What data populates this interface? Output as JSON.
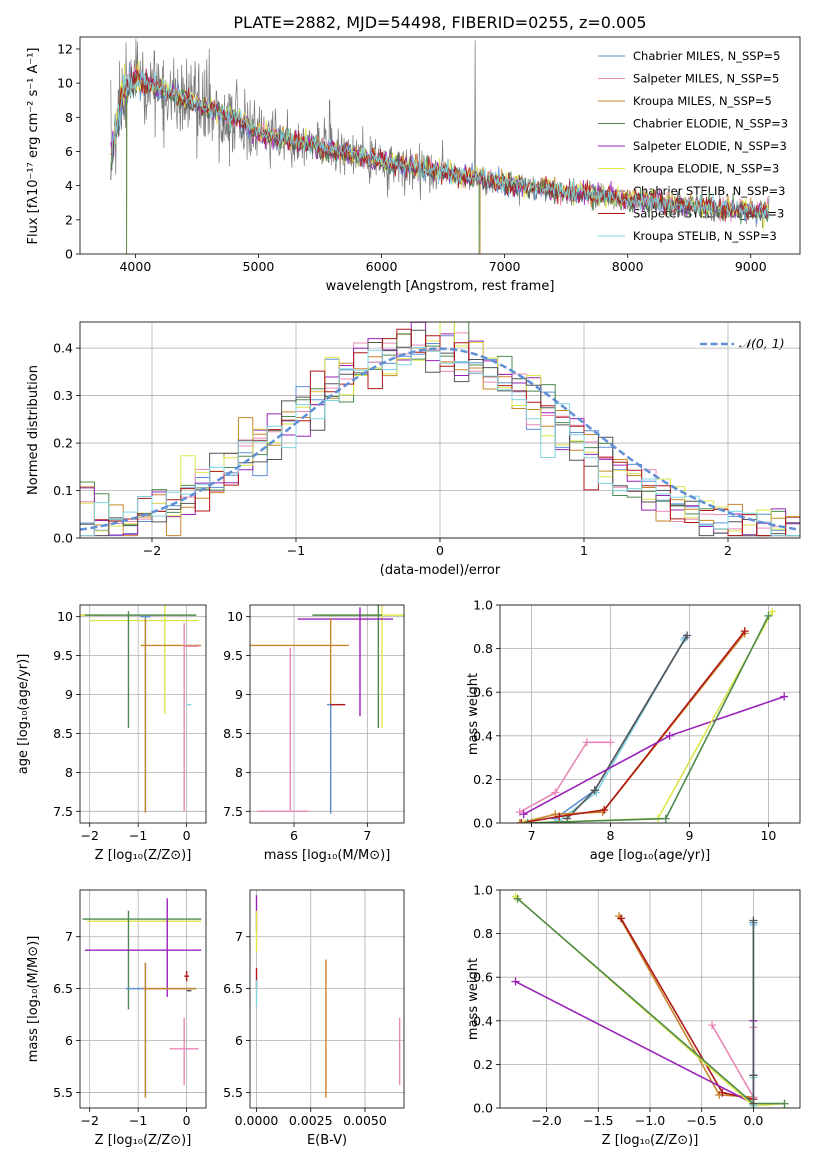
{
  "colors": [
    "#5f8fd6",
    "#e88ab8",
    "#c8862a",
    "#4e8a4e",
    "#9b22b8",
    "#dde64a",
    "#555555",
    "#b01818",
    "#7fd4e0"
  ],
  "chart_data": [
    {
      "type": "line",
      "title": "PLATE=2882, MJD=54498, FIBERID=0255, z=0.005",
      "xlabel": "wavelength [Angstrom, rest frame]",
      "ylabel": "Flux [fλ10⁻¹⁷ erg cm⁻² s⁻¹ A⁻¹]",
      "xlim": [
        3550,
        9400
      ],
      "ylim": [
        0,
        12.7
      ],
      "xticks": [
        4000,
        5000,
        6000,
        7000,
        8000,
        9000
      ],
      "yticks": [
        0,
        2,
        4,
        6,
        8,
        10,
        12
      ],
      "grid": false,
      "legend_position": "top-right",
      "series": [
        {
          "name": "Chabrier MILES, N_SSP=5"
        },
        {
          "name": "Salpeter MILES, N_SSP=5"
        },
        {
          "name": "Kroupa MILES, N_SSP=5"
        },
        {
          "name": "Chabrier ELODIE, N_SSP=3"
        },
        {
          "name": "Salpeter ELODIE, N_SSP=3"
        },
        {
          "name": "Kroupa ELODIE, N_SSP=3"
        },
        {
          "name": "Chabrier STELIB, N_SSP=3"
        },
        {
          "name": "Salpeter STELIB, N_SSP=3"
        },
        {
          "name": "Kroupa STELIB, N_SSP=3"
        }
      ],
      "model_trend": {
        "x": [
          3800,
          3900,
          4000,
          4200,
          4500,
          4800,
          5000,
          5500,
          6000,
          6500,
          7000,
          7500,
          8000,
          8500,
          9000,
          9100
        ],
        "y": [
          5.5,
          9.5,
          10.2,
          9.6,
          8.7,
          7.9,
          7.0,
          6.2,
          5.4,
          4.7,
          4.1,
          3.6,
          3.15,
          2.8,
          2.5,
          2.4
        ]
      }
    },
    {
      "type": "histogram",
      "xlabel": "(data-model)/error",
      "ylabel": "Normed distribution",
      "xlim": [
        -2.5,
        2.5
      ],
      "ylim": [
        0,
        0.455
      ],
      "xticks": [
        -2,
        -1,
        0,
        1,
        2
      ],
      "yticks": [
        0.0,
        0.1,
        0.2,
        0.3,
        0.4
      ],
      "grid": true,
      "legend_position": "top-right",
      "reference": {
        "name": "𝒩(0, 1)",
        "mean": 0,
        "sigma": 1,
        "color": "#5f8fd6"
      },
      "bin_width": 0.1,
      "bin_range": [
        -2.5,
        2.5
      ]
    },
    {
      "type": "scatter",
      "xlabel": "Z [log₁₀(Z/Z⊙)]",
      "ylabel": "age  [log₁₀(age/yr)]",
      "xlim": [
        -2.2,
        0.4
      ],
      "ylim": [
        7.35,
        10.15
      ],
      "xticks": [
        -2,
        -1,
        0
      ],
      "yticks": [
        7.5,
        8.0,
        8.5,
        9.0,
        9.5,
        10.0
      ],
      "grid": true,
      "points": [
        {
          "s": 5,
          "x": -2.0,
          "y": 10.02,
          "xe": [
            2.3,
            0.3
          ],
          "ye": [
            0,
            0
          ]
        },
        {
          "s": 5,
          "x": -0.45,
          "y": 9.95,
          "xe": [
            1.55,
            0.7
          ],
          "ye": [
            1.2,
            0.2
          ]
        },
        {
          "s": 3,
          "x": -1.2,
          "y": 10.02,
          "xe": [
            0.9,
            1.4
          ],
          "ye": [
            1.45,
            0.05
          ]
        },
        {
          "s": 0,
          "x": -0.85,
          "y": 10.0,
          "xe": [
            0.1,
            0.1
          ],
          "ye": [
            2.5,
            0.0
          ]
        },
        {
          "s": 2,
          "x": -0.85,
          "y": 9.63,
          "xe": [
            0.1,
            1.15
          ],
          "ye": [
            2.15,
            0.35
          ]
        },
        {
          "s": 1,
          "x": -0.05,
          "y": 9.62,
          "xe": [
            0.0,
            0.3
          ],
          "ye": [
            2.12,
            0.3
          ]
        },
        {
          "s": 8,
          "x": 0.05,
          "y": 8.87,
          "xe": [
            0.05,
            0.05
          ],
          "ye": [
            0,
            0
          ]
        },
        {
          "s": 5,
          "x": 0.0,
          "y": 10.02,
          "xe": [
            0,
            0
          ],
          "ye": [
            0,
            0
          ]
        }
      ]
    },
    {
      "type": "scatter",
      "xlabel": "mass [log₁₀(M/M⊙)]",
      "ylabel": "",
      "xlim": [
        5.4,
        7.5
      ],
      "ylim": [
        7.35,
        10.15
      ],
      "xticks": [
        6,
        7
      ],
      "yticks": [
        7.5,
        8.0,
        8.5,
        9.0,
        9.5,
        10.0
      ],
      "grid": true,
      "points": [
        {
          "s": 5,
          "x": 7.2,
          "y": 10.02,
          "xe": [
            0.9,
            0.3
          ],
          "ye": [
            1.45,
            0.15
          ]
        },
        {
          "s": 3,
          "x": 7.15,
          "y": 10.02,
          "xe": [
            0.9,
            0.05
          ],
          "ye": [
            1.45,
            0.15
          ]
        },
        {
          "s": 4,
          "x": 6.9,
          "y": 9.97,
          "xe": [
            0.85,
            0.45
          ],
          "ye": [
            1.25,
            0.15
          ]
        },
        {
          "s": 2,
          "x": 6.5,
          "y": 9.63,
          "xe": [
            1.2,
            0.25
          ],
          "ye": [
            2.15,
            0.35
          ]
        },
        {
          "s": 1,
          "x": 5.95,
          "y": 7.5,
          "xe": [
            0.45,
            0.25
          ],
          "ye": [
            0,
            2.1
          ]
        },
        {
          "s": 0,
          "x": 6.5,
          "y": 8.87,
          "xe": [
            0.05,
            0.05
          ],
          "ye": [
            1.4,
            0.0
          ]
        },
        {
          "s": 7,
          "x": 6.6,
          "y": 8.87,
          "xe": [
            0.1,
            0.1
          ],
          "ye": [
            0,
            0
          ]
        }
      ]
    },
    {
      "type": "line",
      "xlabel": "age  [log₁₀(age/yr)]",
      "ylabel": "mass weight",
      "xlim": [
        6.6,
        10.4
      ],
      "ylim": [
        0,
        1.0
      ],
      "xticks": [
        7,
        8,
        9,
        10
      ],
      "yticks": [
        0.0,
        0.2,
        0.4,
        0.6,
        0.8,
        1.0
      ],
      "grid": true,
      "series": [
        {
          "s": 0,
          "x": [
            7.3,
            7.8,
            8.95
          ],
          "y": [
            0.02,
            0.15,
            0.85
          ]
        },
        {
          "s": 8,
          "x": [
            7.35,
            7.82,
            8.93
          ],
          "y": [
            0.01,
            0.14,
            0.84
          ]
        },
        {
          "s": 6,
          "x": [
            7.45,
            7.8,
            8.97
          ],
          "y": [
            0.02,
            0.15,
            0.86
          ]
        },
        {
          "s": 2,
          "x": [
            6.85,
            7.3,
            7.9,
            9.7
          ],
          "y": [
            0.0,
            0.04,
            0.05,
            0.87
          ]
        },
        {
          "s": 7,
          "x": [
            6.87,
            7.35,
            7.92,
            9.7
          ],
          "y": [
            0.0,
            0.03,
            0.06,
            0.88
          ]
        },
        {
          "s": 1,
          "x": [
            6.85,
            7.3,
            7.7,
            8.0
          ],
          "y": [
            0.05,
            0.14,
            0.37,
            0.37
          ]
        },
        {
          "s": 4,
          "x": [
            6.9,
            8.75,
            10.2
          ],
          "y": [
            0.04,
            0.4,
            0.58
          ]
        },
        {
          "s": 5,
          "x": [
            6.9,
            8.6,
            10.05
          ],
          "y": [
            0.0,
            0.02,
            0.97
          ]
        },
        {
          "s": 3,
          "x": [
            6.95,
            8.7,
            10.0
          ],
          "y": [
            0.0,
            0.02,
            0.95
          ]
        }
      ]
    },
    {
      "type": "scatter",
      "xlabel": "Z [log₁₀(Z/Z⊙)]",
      "ylabel": "mass [log₁₀(M/M⊙)]",
      "xlim": [
        -2.2,
        0.4
      ],
      "ylim": [
        5.35,
        7.45
      ],
      "xticks": [
        -2,
        -1,
        0
      ],
      "yticks": [
        5.5,
        6.0,
        6.5,
        7.0
      ],
      "grid": true,
      "points": [
        {
          "s": 3,
          "x": -2.0,
          "y": 7.17,
          "xe": [
            0.15,
            2.3
          ],
          "ye": [
            0,
            0
          ]
        },
        {
          "s": 5,
          "x": -2.0,
          "y": 7.15,
          "xe": [
            0.05,
            2.3
          ],
          "ye": [
            0,
            0
          ]
        },
        {
          "s": 3,
          "x": -1.2,
          "y": 7.15,
          "xe": [
            0,
            0
          ],
          "ye": [
            0.85,
            0.1
          ]
        },
        {
          "s": 4,
          "x": -0.4,
          "y": 6.87,
          "xe": [
            1.7,
            0.7
          ],
          "ye": [
            0.45,
            0.5
          ]
        },
        {
          "s": 0,
          "x": -0.85,
          "y": 6.5,
          "xe": [
            0.4,
            1.05
          ],
          "ye": [
            1.05,
            0.25
          ]
        },
        {
          "s": 2,
          "x": -0.85,
          "y": 6.5,
          "xe": [
            0.05,
            1.05
          ],
          "ye": [
            1.05,
            0.25
          ]
        },
        {
          "s": 7,
          "x": 0.0,
          "y": 6.62,
          "xe": [
            0.05,
            0.05
          ],
          "ye": [
            0.05,
            0.05
          ]
        },
        {
          "s": 6,
          "x": 0.05,
          "y": 6.48,
          "xe": [
            0.05,
            0.05
          ],
          "ye": [
            0,
            0
          ]
        },
        {
          "s": 1,
          "x": -0.05,
          "y": 5.92,
          "xe": [
            0.3,
            0.3
          ],
          "ye": [
            0.35,
            0.3
          ]
        }
      ]
    },
    {
      "type": "scatter",
      "xlabel": "E(B-V)",
      "ylabel": "",
      "xlim": [
        -0.0003,
        0.0068
      ],
      "ylim": [
        5.35,
        7.45
      ],
      "xticks": [
        0.0,
        0.0025,
        0.005
      ],
      "tick_labels": [
        "0.0000",
        "0.0025",
        "0.0050"
      ],
      "yticks": [
        5.5,
        6.0,
        6.5,
        7.0
      ],
      "grid": true,
      "points": [
        {
          "s": 4,
          "x": 0.0,
          "y": 7.2,
          "xe": [
            0,
            0
          ],
          "ye": [
            0.15,
            0.2
          ]
        },
        {
          "s": 5,
          "x": 0.0,
          "y": 7.05,
          "xe": [
            0,
            0
          ],
          "ye": [
            0.2,
            0.2
          ]
        },
        {
          "s": 7,
          "x": 0.0,
          "y": 6.6,
          "xe": [
            0,
            0
          ],
          "ye": [
            0.1,
            0.1
          ]
        },
        {
          "s": 8,
          "x": 0.0,
          "y": 6.48,
          "xe": [
            0,
            0
          ],
          "ye": [
            0.15,
            0.1
          ]
        },
        {
          "s": 2,
          "x": 0.0032,
          "y": 6.5,
          "xe": [
            0,
            0
          ],
          "ye": [
            1.05,
            0.28
          ]
        },
        {
          "s": 1,
          "x": 0.0066,
          "y": 5.92,
          "xe": [
            0,
            0
          ],
          "ye": [
            0.35,
            0.3
          ]
        }
      ]
    },
    {
      "type": "line",
      "xlabel": "Z [log₁₀(Z/Z⊙)]",
      "ylabel": "mass weight",
      "xlim": [
        -2.45,
        0.45
      ],
      "ylim": [
        0,
        1.0
      ],
      "xticks": [
        -2.0,
        -1.5,
        -1.0,
        -0.5,
        0.0
      ],
      "tick_labels": [
        "−2.0",
        "−1.5",
        "−1.0",
        "−0.5",
        "0.0"
      ],
      "yticks": [
        0.0,
        0.2,
        0.4,
        0.6,
        0.8,
        1.0
      ],
      "grid": true,
      "series": [
        {
          "s": 2,
          "x": [
            -1.3,
            -0.33,
            0.0
          ],
          "y": [
            0.88,
            0.06,
            0.05
          ]
        },
        {
          "s": 7,
          "x": [
            -1.28,
            -0.3,
            0.0
          ],
          "y": [
            0.87,
            0.07,
            0.04
          ]
        },
        {
          "s": 1,
          "x": [
            -0.4,
            0.0,
            0.0
          ],
          "y": [
            0.38,
            0.05,
            0.37
          ]
        },
        {
          "s": 4,
          "x": [
            -2.3,
            0.0,
            0.0
          ],
          "y": [
            0.58,
            0.02,
            0.4
          ]
        },
        {
          "s": 5,
          "x": [
            -2.3,
            0.0,
            0.3
          ],
          "y": [
            0.97,
            0.01,
            0.02
          ]
        },
        {
          "s": 3,
          "x": [
            -2.28,
            0.0,
            0.3
          ],
          "y": [
            0.96,
            0.02,
            0.02
          ]
        },
        {
          "s": 0,
          "x": [
            0.0,
            0.0,
            0.0
          ],
          "y": [
            0.02,
            0.15,
            0.85
          ]
        },
        {
          "s": 8,
          "x": [
            0.0,
            0.0,
            0.0
          ],
          "y": [
            0.01,
            0.14,
            0.84
          ]
        },
        {
          "s": 6,
          "x": [
            0.0,
            0.0,
            0.0
          ],
          "y": [
            0.02,
            0.15,
            0.86
          ]
        }
      ]
    }
  ]
}
